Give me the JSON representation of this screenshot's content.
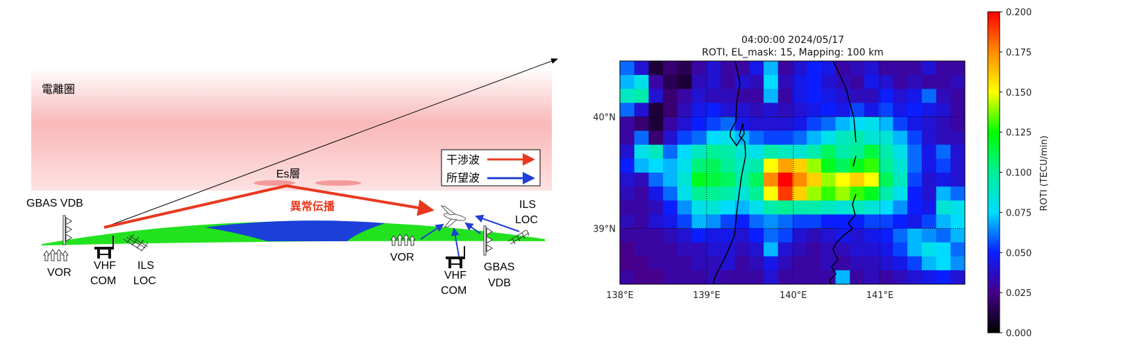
{
  "diagram": {
    "ionosphere_label": "電離圏",
    "es_layer_label": "Es層",
    "anomalous_propagation_label": "異常伝播",
    "legend": {
      "interference": {
        "label": "干渉波",
        "color": "#e8391f"
      },
      "desired": {
        "label": "所望波",
        "color": "#1f3fd6"
      }
    },
    "left_stations": {
      "gbas_vdb": "GBAS VDB",
      "vor": "VOR",
      "vhf_com": [
        "VHF",
        "COM"
      ],
      "ils_loc": [
        "ILS",
        "LOC"
      ]
    },
    "right_stations": {
      "vor": "VOR",
      "vhf_com": [
        "VHF",
        "COM"
      ],
      "gbas_vdb": [
        "GBAS",
        "VDB"
      ],
      "ils_loc": [
        "ILS",
        "LOC"
      ]
    },
    "colors": {
      "ionosphere": "#f8b4b4",
      "ground": "#22e21f",
      "sea": "#1b3fd8",
      "es": "#f08a8a"
    }
  },
  "chart_data": {
    "type": "heatmap",
    "title": [
      "04:00:00 2024/05/17",
      "ROTI, EL_mask: 15, Mapping: 100 km"
    ],
    "xlabel": "",
    "ylabel": "",
    "xlim": [
      138.0,
      141.98
    ],
    "ylim": [
      38.5,
      40.5
    ],
    "xticks": [
      {
        "value": 138,
        "label": "138°E"
      },
      {
        "value": 139,
        "label": "139°E"
      },
      {
        "value": 140,
        "label": "140°E"
      },
      {
        "value": 141,
        "label": "141°E"
      }
    ],
    "yticks": [
      {
        "value": 39,
        "label": "39°N"
      },
      {
        "value": 40,
        "label": "40°N"
      }
    ],
    "grid": true,
    "colorbar": {
      "label": "ROTI (TECU/min)",
      "range": [
        0.0,
        0.2
      ],
      "ticks": [
        "0.000",
        "0.025",
        "0.050",
        "0.075",
        "0.100",
        "0.125",
        "0.150",
        "0.175",
        "0.200"
      ]
    },
    "grid_units": "ROTI x 1000 (TECU/min), rows from north to south, columns west to east",
    "values": [
      [
        60,
        40,
        10,
        20,
        15,
        30,
        40,
        30,
        30,
        45,
        70,
        30,
        40,
        50,
        45,
        30,
        35,
        40,
        30,
        30,
        30,
        40,
        30,
        30
      ],
      [
        70,
        80,
        30,
        15,
        10,
        35,
        40,
        30,
        40,
        35,
        75,
        35,
        45,
        50,
        40,
        35,
        30,
        45,
        40,
        30,
        35,
        30,
        30,
        35
      ],
      [
        90,
        95,
        40,
        20,
        30,
        40,
        35,
        35,
        30,
        30,
        70,
        30,
        45,
        50,
        45,
        40,
        35,
        35,
        50,
        40,
        45,
        60,
        35,
        30
      ],
      [
        60,
        40,
        10,
        20,
        35,
        45,
        50,
        40,
        40,
        35,
        40,
        35,
        40,
        45,
        50,
        45,
        55,
        45,
        55,
        45,
        50,
        45,
        40,
        30
      ],
      [
        30,
        20,
        10,
        30,
        40,
        50,
        55,
        60,
        45,
        40,
        40,
        40,
        45,
        55,
        60,
        70,
        75,
        80,
        70,
        55,
        45,
        40,
        35,
        30
      ],
      [
        30,
        60,
        20,
        40,
        55,
        60,
        75,
        80,
        70,
        60,
        55,
        55,
        60,
        70,
        80,
        90,
        95,
        85,
        85,
        70,
        55,
        40,
        35,
        35
      ],
      [
        40,
        80,
        90,
        60,
        75,
        90,
        100,
        95,
        85,
        80,
        95,
        90,
        85,
        95,
        110,
        95,
        100,
        115,
        95,
        80,
        60,
        45,
        60,
        40
      ],
      [
        50,
        70,
        75,
        70,
        80,
        105,
        110,
        100,
        90,
        95,
        150,
        170,
        160,
        140,
        120,
        110,
        120,
        130,
        100,
        85,
        60,
        45,
        55,
        40
      ],
      [
        40,
        35,
        60,
        70,
        85,
        120,
        115,
        110,
        95,
        110,
        175,
        200,
        175,
        160,
        140,
        150,
        160,
        150,
        110,
        90,
        55,
        40,
        45,
        40
      ],
      [
        35,
        30,
        45,
        60,
        80,
        100,
        100,
        95,
        85,
        100,
        150,
        190,
        160,
        140,
        130,
        140,
        130,
        120,
        95,
        80,
        50,
        40,
        70,
        60
      ],
      [
        30,
        30,
        35,
        50,
        65,
        80,
        85,
        75,
        70,
        80,
        95,
        100,
        95,
        95,
        90,
        85,
        90,
        85,
        75,
        65,
        50,
        45,
        85,
        80
      ],
      [
        35,
        30,
        40,
        45,
        55,
        70,
        65,
        55,
        50,
        60,
        65,
        60,
        55,
        55,
        50,
        50,
        50,
        55,
        55,
        50,
        45,
        55,
        70,
        75
      ],
      [
        30,
        30,
        30,
        35,
        40,
        50,
        45,
        45,
        40,
        50,
        60,
        55,
        40,
        35,
        40,
        45,
        40,
        45,
        50,
        60,
        70,
        65,
        60,
        70
      ],
      [
        25,
        30,
        30,
        30,
        35,
        35,
        40,
        40,
        35,
        40,
        70,
        40,
        35,
        30,
        35,
        35,
        40,
        40,
        45,
        55,
        70,
        80,
        75,
        60
      ],
      [
        25,
        25,
        30,
        30,
        30,
        35,
        35,
        40,
        30,
        35,
        45,
        35,
        30,
        30,
        35,
        30,
        35,
        35,
        40,
        45,
        55,
        70,
        75,
        65
      ],
      [
        30,
        25,
        25,
        30,
        30,
        30,
        35,
        30,
        30,
        30,
        40,
        30,
        30,
        30,
        30,
        70,
        30,
        35,
        30,
        35,
        40,
        45,
        50,
        40
      ]
    ]
  }
}
